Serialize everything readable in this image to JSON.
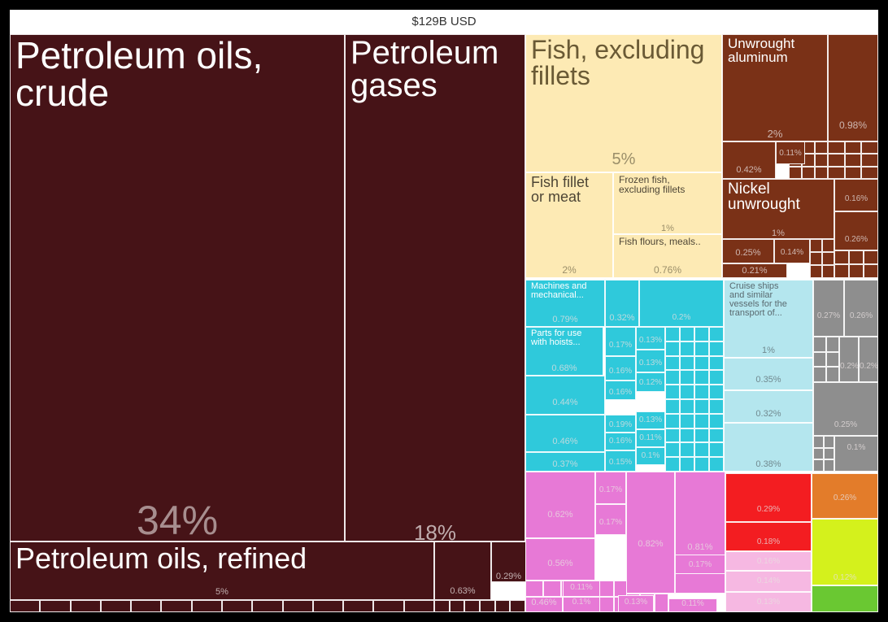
{
  "chart_data": {
    "type": "treemap",
    "title": "$129B USD",
    "total": "$129B USD",
    "colors": {
      "mineral": "#461317",
      "fish": "#FDEAB4",
      "metal": "#7A3117",
      "machinery": "#2FC9DB",
      "transport": "#B4E6EE",
      "chemical": "#E779D6",
      "gray": "#8E8E8E",
      "red": "#F31D21",
      "orange": "#E37C2A",
      "lime": "#D4F11C",
      "green": "#6AC832",
      "pink": "#F6B8E2"
    },
    "tiles": [
      {
        "label": "Petroleum oils,\ncrude",
        "pct": "34%",
        "share": 34,
        "group": "mineral"
      },
      {
        "label": "Petroleum\ngases",
        "pct": "18%",
        "share": 18,
        "group": "mineral"
      },
      {
        "label": "Petroleum oils, refined",
        "pct": "5%",
        "share": 5,
        "group": "mineral"
      },
      {
        "label": "",
        "pct": "0.63%",
        "share": 0.63,
        "group": "mineral"
      },
      {
        "label": "",
        "pct": "0.29%",
        "share": 0.29,
        "group": "mineral"
      },
      {
        "label": "Fish, excluding\nfillets",
        "pct": "5%",
        "share": 5,
        "group": "fish"
      },
      {
        "label": "Fish fillet\nor meat",
        "pct": "2%",
        "share": 2,
        "group": "fish"
      },
      {
        "label": "Frozen fish,\nexcluding fillets",
        "pct": "1%",
        "share": 1,
        "group": "fish"
      },
      {
        "label": "Fish flours, meals..",
        "pct": "0.76%",
        "share": 0.76,
        "group": "fish"
      },
      {
        "label": "Unwrought\naluminum",
        "pct": "2%",
        "share": 2,
        "group": "metal"
      },
      {
        "label": "",
        "pct": "0.98%",
        "share": 0.98,
        "group": "metal"
      },
      {
        "label": "",
        "pct": "0.42%",
        "share": 0.42,
        "group": "metal"
      },
      {
        "label": "",
        "pct": "0.11%",
        "share": 0.11,
        "group": "metal"
      },
      {
        "label": "Nickel\nunwrought",
        "pct": "1%",
        "share": 1,
        "group": "metal"
      },
      {
        "label": "",
        "pct": "0.16%",
        "share": 0.16,
        "group": "metal"
      },
      {
        "label": "",
        "pct": "0.26%",
        "share": 0.26,
        "group": "metal"
      },
      {
        "label": "",
        "pct": "0.25%",
        "share": 0.25,
        "group": "metal"
      },
      {
        "label": "",
        "pct": "0.14%",
        "share": 0.14,
        "group": "metal"
      },
      {
        "label": "",
        "pct": "0.21%",
        "share": 0.21,
        "group": "metal"
      },
      {
        "label": "Machines and\nmechanical...",
        "pct": "0.79%",
        "share": 0.79,
        "group": "machinery"
      },
      {
        "label": "",
        "pct": "0.32%",
        "share": 0.32,
        "group": "machinery"
      },
      {
        "label": "",
        "pct": "0.2%",
        "share": 0.2,
        "group": "machinery"
      },
      {
        "label": "Parts for use\nwith hoists...",
        "pct": "0.68%",
        "share": 0.68,
        "group": "machinery"
      },
      {
        "label": "",
        "pct": "0.17%",
        "share": 0.17,
        "group": "machinery"
      },
      {
        "label": "",
        "pct": "0.13%",
        "share": 0.13,
        "group": "machinery"
      },
      {
        "label": "",
        "pct": "0.13%",
        "share": 0.13,
        "group": "machinery"
      },
      {
        "label": "",
        "pct": "0.16%",
        "share": 0.16,
        "group": "machinery"
      },
      {
        "label": "",
        "pct": "0.12%",
        "share": 0.12,
        "group": "machinery"
      },
      {
        "label": "",
        "pct": "0.44%",
        "share": 0.44,
        "group": "machinery"
      },
      {
        "label": "",
        "pct": "0.16%",
        "share": 0.16,
        "group": "machinery"
      },
      {
        "label": "",
        "pct": "0.46%",
        "share": 0.46,
        "group": "machinery"
      },
      {
        "label": "",
        "pct": "0.19%",
        "share": 0.19,
        "group": "machinery"
      },
      {
        "label": "",
        "pct": "0.13%",
        "share": 0.13,
        "group": "machinery"
      },
      {
        "label": "",
        "pct": "0.16%",
        "share": 0.16,
        "group": "machinery"
      },
      {
        "label": "",
        "pct": "0.11%",
        "share": 0.11,
        "group": "machinery"
      },
      {
        "label": "",
        "pct": "0.1%",
        "share": 0.1,
        "group": "machinery"
      },
      {
        "label": "",
        "pct": "0.37%",
        "share": 0.37,
        "group": "machinery"
      },
      {
        "label": "",
        "pct": "0.15%",
        "share": 0.15,
        "group": "machinery"
      },
      {
        "label": "Cruise ships\nand similar\nvessels for the\ntransport of...",
        "pct": "1%",
        "share": 1,
        "group": "transport"
      },
      {
        "label": "",
        "pct": "0.35%",
        "share": 0.35,
        "group": "transport"
      },
      {
        "label": "",
        "pct": "0.32%",
        "share": 0.32,
        "group": "transport"
      },
      {
        "label": "",
        "pct": "0.38%",
        "share": 0.38,
        "group": "transport"
      },
      {
        "label": "",
        "pct": "0.27%",
        "share": 0.27,
        "group": "gray"
      },
      {
        "label": "",
        "pct": "0.26%",
        "share": 0.26,
        "group": "gray"
      },
      {
        "label": "",
        "pct": "0.2%",
        "share": 0.2,
        "group": "gray"
      },
      {
        "label": "",
        "pct": "0.2%",
        "share": 0.2,
        "group": "gray"
      },
      {
        "label": "",
        "pct": "0.25%",
        "share": 0.25,
        "group": "gray"
      },
      {
        "label": "",
        "pct": "0.1%",
        "share": 0.1,
        "group": "gray"
      },
      {
        "label": "",
        "pct": "0.62%",
        "share": 0.62,
        "group": "chemical"
      },
      {
        "label": "",
        "pct": "0.17%",
        "share": 0.17,
        "group": "chemical"
      },
      {
        "label": "",
        "pct": "0.17%",
        "share": 0.17,
        "group": "chemical"
      },
      {
        "label": "",
        "pct": "0.56%",
        "share": 0.56,
        "group": "chemical"
      },
      {
        "label": "",
        "pct": "0.82%",
        "share": 0.82,
        "group": "chemical"
      },
      {
        "label": "",
        "pct": "0.81%",
        "share": 0.81,
        "group": "chemical"
      },
      {
        "label": "",
        "pct": "0.17%",
        "share": 0.17,
        "group": "chemical"
      },
      {
        "label": "",
        "pct": "0.11%",
        "share": 0.11,
        "group": "chemical"
      },
      {
        "label": "",
        "pct": "0.1%",
        "share": 0.1,
        "group": "chemical"
      },
      {
        "label": "",
        "pct": "0.13%",
        "share": 0.13,
        "group": "chemical"
      },
      {
        "label": "",
        "pct": "0.46%",
        "share": 0.46,
        "group": "chemical"
      },
      {
        "label": "",
        "pct": "0.11%",
        "share": 0.11,
        "group": "chemical"
      },
      {
        "label": "",
        "pct": "0.29%",
        "share": 0.29,
        "group": "red"
      },
      {
        "label": "",
        "pct": "0.18%",
        "share": 0.18,
        "group": "red"
      },
      {
        "label": "",
        "pct": "0.16%",
        "share": 0.16,
        "group": "pink"
      },
      {
        "label": "",
        "pct": "0.14%",
        "share": 0.14,
        "group": "pink"
      },
      {
        "label": "",
        "pct": "0.13%",
        "share": 0.13,
        "group": "pink"
      },
      {
        "label": "",
        "pct": "0.26%",
        "share": 0.26,
        "group": "orange"
      },
      {
        "label": "",
        "pct": "0.12%",
        "share": 0.12,
        "group": "lime"
      },
      {
        "label": "",
        "pct": "",
        "share": null,
        "group": "green"
      }
    ]
  }
}
